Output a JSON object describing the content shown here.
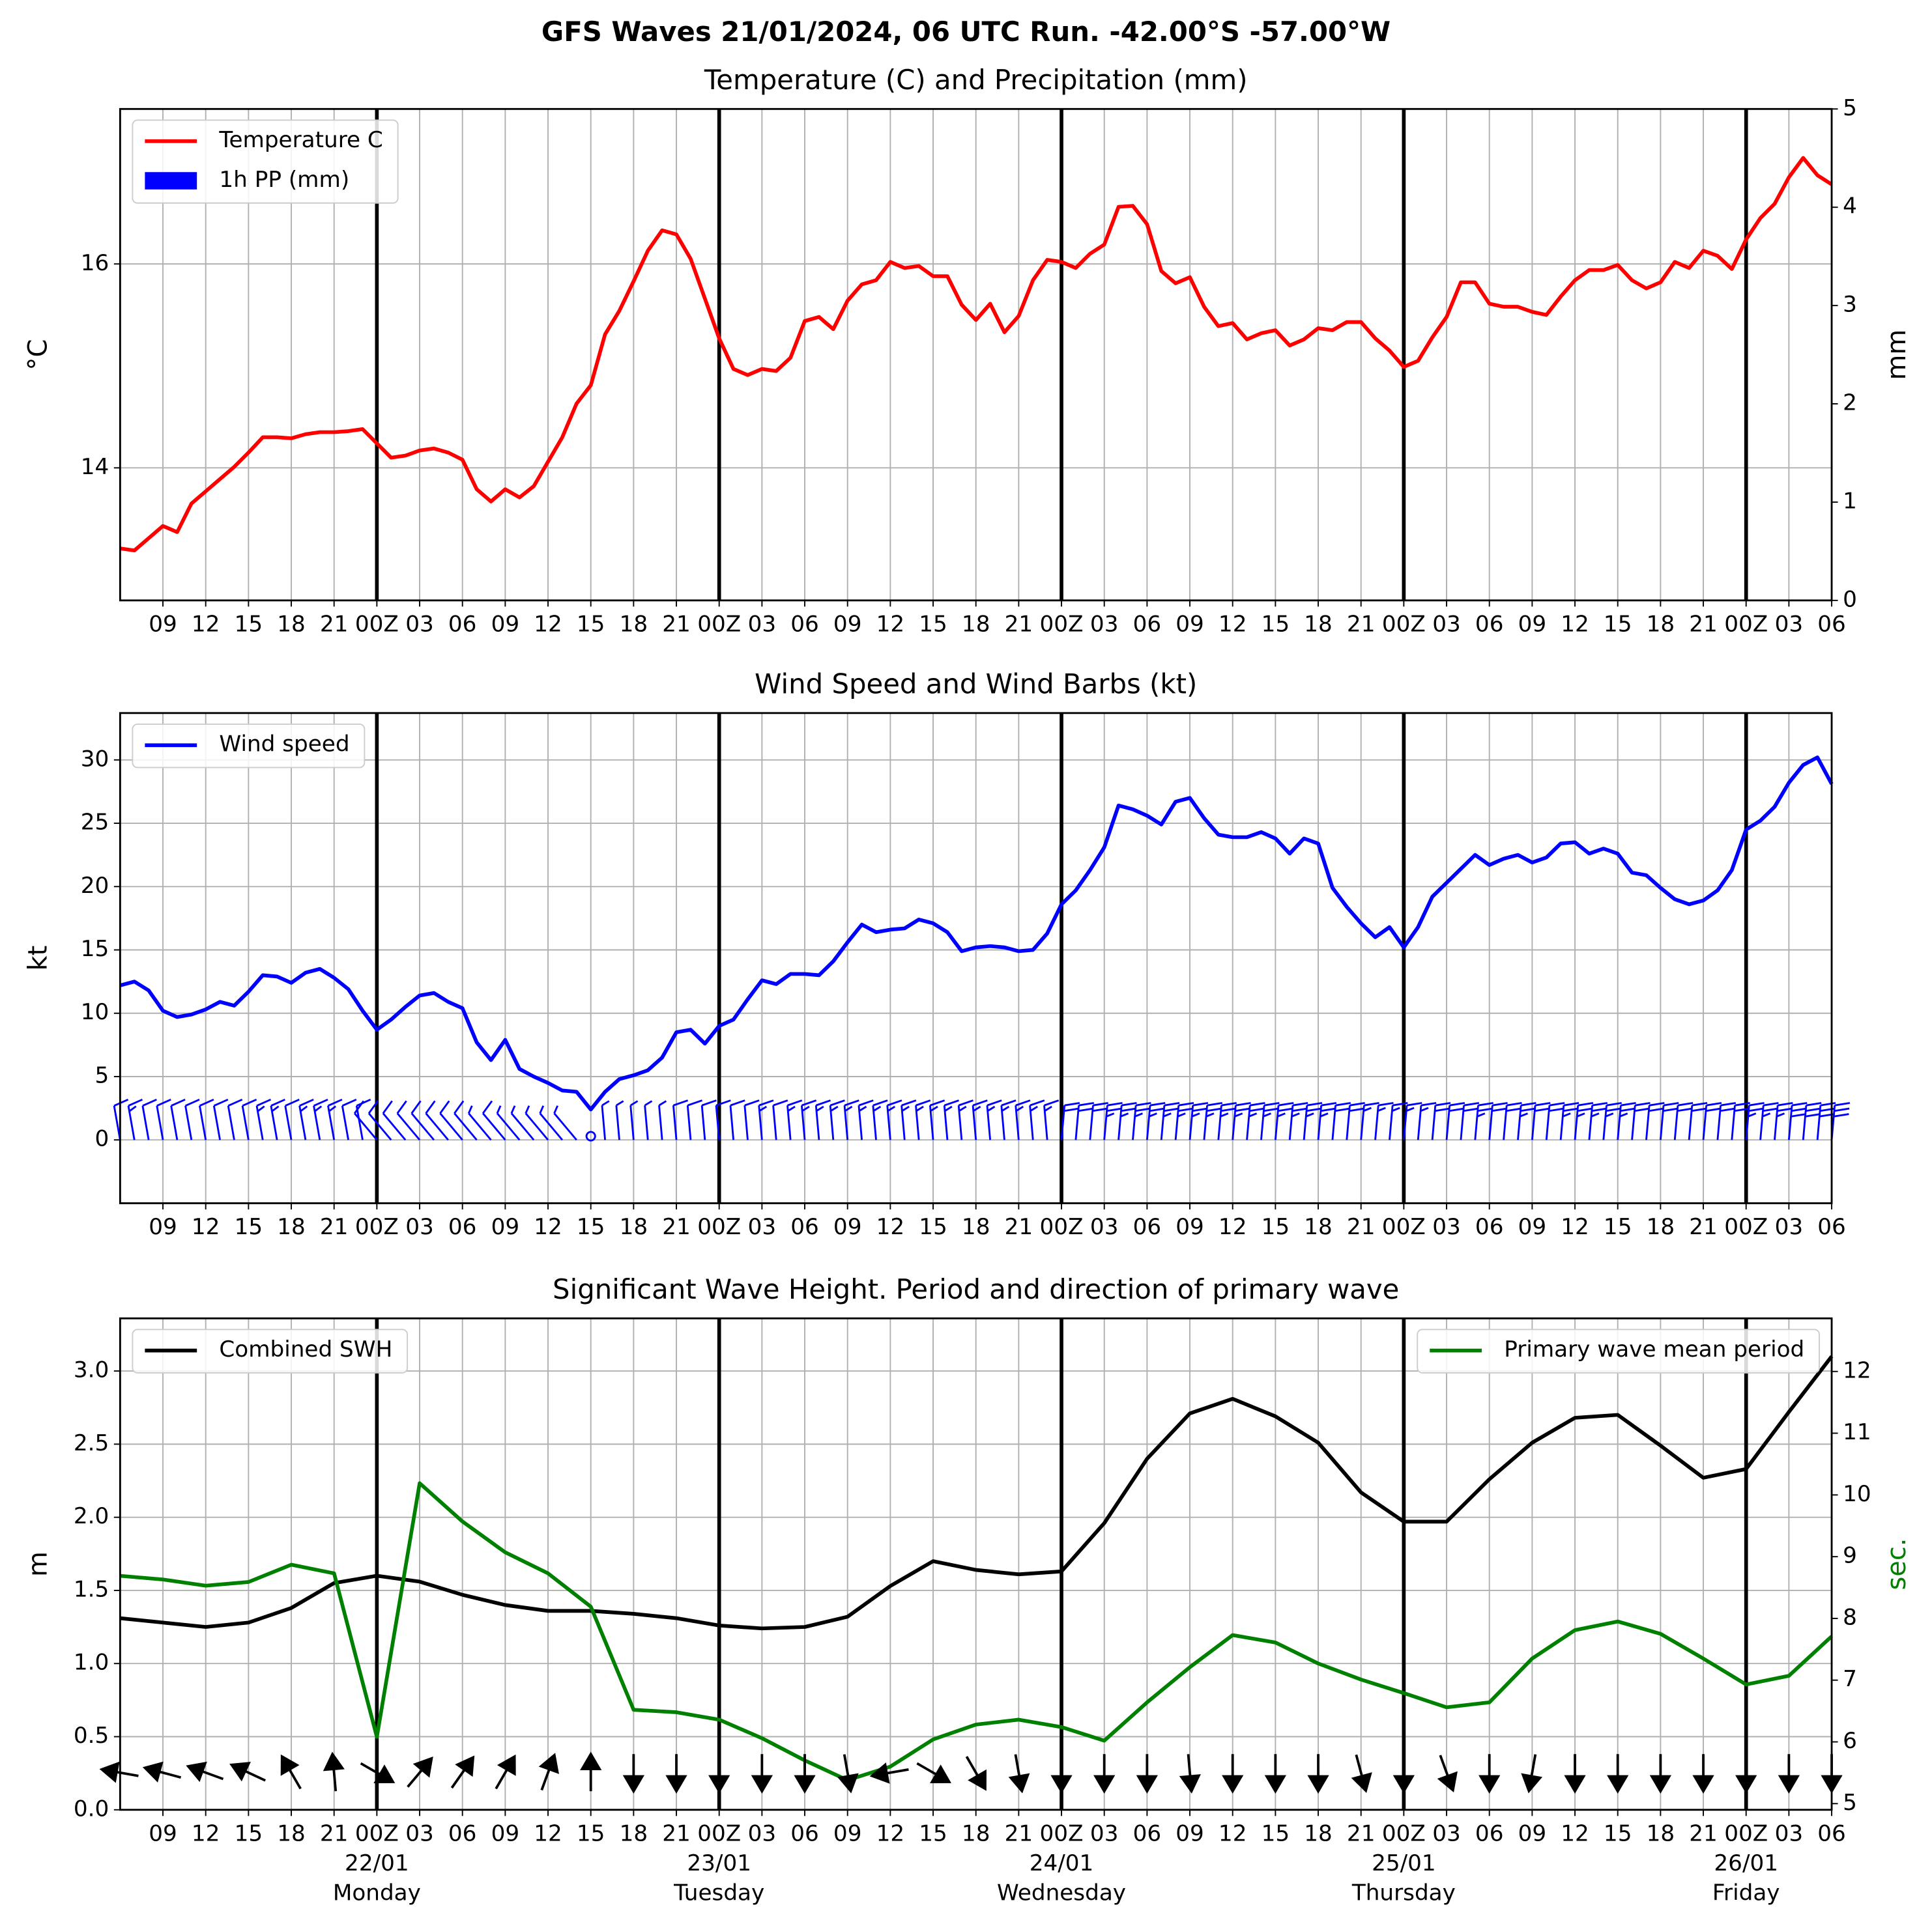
{
  "title": "GFS Waves 21/01/2024, 06 UTC Run. -42.00°S -57.00°W",
  "chart_data": [
    {
      "type": "line",
      "title": "Temperature (C) and Precipitation (mm)",
      "ylabel": "°C",
      "y2label": "mm",
      "categories": [
        null,
        null,
        null,
        "09",
        null,
        null,
        "12",
        null,
        null,
        "15",
        null,
        null,
        "18",
        null,
        null,
        "21",
        null,
        null,
        "00Z",
        null,
        null,
        "03",
        null,
        null,
        "06",
        null,
        null,
        "09",
        null,
        null,
        "12",
        null,
        null,
        "15",
        null,
        null,
        "18",
        null,
        null,
        "21",
        null,
        null,
        "00Z",
        null,
        null,
        "03",
        null,
        null,
        "06",
        null,
        null,
        "09",
        null,
        null,
        "12",
        null,
        null,
        "15",
        null,
        null,
        "18",
        null,
        null,
        "21",
        null,
        null,
        "00Z",
        null,
        null,
        "03",
        null,
        null,
        "06",
        null,
        null,
        "09",
        null,
        null,
        "12",
        null,
        null,
        "15",
        null,
        null,
        "18",
        null,
        null,
        "21",
        null,
        null,
        "00Z",
        null,
        null,
        "03",
        null,
        null,
        "06",
        null,
        null,
        "09",
        null,
        null,
        "12",
        null,
        null,
        "15",
        null,
        null,
        "18",
        null,
        null,
        "21",
        null,
        null,
        "00Z",
        null,
        null,
        "03",
        null,
        null,
        "06"
      ],
      "series": [
        {
          "name": "Temperature C",
          "color": "#ff0000",
          "values": [
            13.21,
            13.19,
            13.31,
            13.43,
            13.37,
            13.65,
            13.77,
            13.89,
            14.01,
            14.15,
            14.3,
            14.3,
            14.29,
            14.33,
            14.35,
            14.35,
            14.36,
            14.38,
            14.24,
            14.1,
            14.12,
            14.17,
            14.19,
            14.15,
            14.08,
            13.79,
            13.67,
            13.79,
            13.71,
            13.82,
            14.06,
            14.3,
            14.63,
            14.81,
            15.31,
            15.54,
            15.83,
            16.13,
            16.33,
            16.29,
            16.05,
            15.66,
            15.27,
            14.97,
            14.91,
            14.97,
            14.95,
            15.08,
            15.44,
            15.48,
            15.36,
            15.64,
            15.8,
            15.84,
            16.02,
            15.96,
            15.98,
            15.88,
            15.88,
            15.6,
            15.45,
            15.61,
            15.33,
            15.49,
            15.84,
            16.04,
            16.02,
            15.96,
            16.1,
            16.19,
            16.56,
            16.57,
            16.39,
            15.93,
            15.81,
            15.87,
            15.58,
            15.39,
            15.42,
            15.26,
            15.32,
            15.35,
            15.2,
            15.26,
            15.37,
            15.35,
            15.43,
            15.43,
            15.27,
            15.15,
            14.99,
            15.05,
            15.28,
            15.48,
            15.82,
            15.82,
            15.61,
            15.58,
            15.58,
            15.53,
            15.5,
            15.68,
            15.84,
            15.94,
            15.94,
            15.99,
            15.84,
            15.76,
            15.82,
            16.02,
            15.96,
            16.13,
            16.08,
            15.95,
            16.24,
            16.45,
            16.59,
            16.85,
            17.04,
            16.87,
            16.78
          ]
        },
        {
          "name": "1h PP (mm)",
          "color": "#0000ff",
          "type": "bar",
          "axis": "y2",
          "values": [
            0,
            0,
            0,
            0,
            0,
            0,
            0,
            0,
            0,
            0,
            0,
            0,
            0,
            0,
            0,
            0,
            0,
            0,
            0,
            0,
            0,
            0,
            0,
            0,
            0,
            0,
            0,
            0,
            0,
            0,
            0,
            0,
            0,
            0,
            0,
            0,
            0,
            0,
            0,
            0,
            0,
            0,
            0,
            0,
            0,
            0,
            0,
            0,
            0,
            0,
            0,
            0,
            0,
            0,
            0,
            0,
            0,
            0,
            0,
            0,
            0,
            0,
            0,
            0,
            0,
            0,
            0,
            0,
            0,
            0,
            0,
            0,
            0,
            0,
            0,
            0,
            0,
            0,
            0,
            0,
            0,
            0,
            0,
            0,
            0,
            0,
            0,
            0,
            0,
            0,
            0,
            0,
            0,
            0,
            0,
            0,
            0,
            0,
            0,
            0,
            0,
            0,
            0,
            0,
            0,
            0,
            0,
            0,
            0,
            0,
            0,
            0,
            0,
            0,
            0,
            0,
            0,
            0,
            0,
            0,
            0
          ]
        }
      ],
      "ylim": [
        12.7,
        17.52
      ],
      "yticks": [
        14,
        16
      ],
      "y2lim": [
        0,
        5
      ],
      "y2ticks": [
        0,
        1,
        2,
        3,
        4,
        5
      ],
      "grid": true,
      "legend": "upper left"
    },
    {
      "type": "line",
      "title": "Wind Speed and Wind Barbs (kt)",
      "ylabel": "kt",
      "categories": [
        null,
        null,
        null,
        "09",
        null,
        null,
        "12",
        null,
        null,
        "15",
        null,
        null,
        "18",
        null,
        null,
        "21",
        null,
        null,
        "00Z",
        null,
        null,
        "03",
        null,
        null,
        "06",
        null,
        null,
        "09",
        null,
        null,
        "12",
        null,
        null,
        "15",
        null,
        null,
        "18",
        null,
        null,
        "21",
        null,
        null,
        "00Z",
        null,
        null,
        "03",
        null,
        null,
        "06",
        null,
        null,
        "09",
        null,
        null,
        "12",
        null,
        null,
        "15",
        null,
        null,
        "18",
        null,
        null,
        "21",
        null,
        null,
        "00Z",
        null,
        null,
        "03",
        null,
        null,
        "06",
        null,
        null,
        "09",
        null,
        null,
        "12",
        null,
        null,
        "15",
        null,
        null,
        "18",
        null,
        null,
        "21",
        null,
        null,
        "00Z",
        null,
        null,
        "03",
        null,
        null,
        "06",
        null,
        null,
        "09",
        null,
        null,
        "12",
        null,
        null,
        "15",
        null,
        null,
        "18",
        null,
        null,
        "21",
        null,
        null,
        "00Z",
        null,
        null,
        "03",
        null,
        null,
        "06"
      ],
      "series": [
        {
          "name": "Wind speed",
          "color": "#0000ff",
          "values": [
            12.2,
            12.5,
            11.8,
            10.2,
            9.7,
            9.9,
            10.3,
            10.9,
            10.6,
            11.7,
            13.0,
            12.9,
            12.4,
            13.2,
            13.5,
            12.8,
            11.9,
            10.2,
            8.7,
            9.5,
            10.5,
            11.4,
            11.6,
            10.9,
            10.4,
            7.7,
            6.3,
            7.9,
            5.6,
            5.0,
            4.5,
            3.9,
            3.8,
            2.4,
            3.8,
            4.8,
            5.1,
            5.5,
            6.5,
            8.5,
            8.7,
            7.6,
            9.0,
            9.5,
            11.1,
            12.6,
            12.3,
            13.1,
            13.1,
            13.0,
            14.1,
            15.6,
            17.0,
            16.4,
            16.6,
            16.7,
            17.4,
            17.1,
            16.4,
            14.9,
            15.2,
            15.3,
            15.2,
            14.9,
            15.0,
            16.3,
            18.6,
            19.7,
            21.3,
            23.1,
            26.4,
            26.1,
            25.6,
            24.9,
            26.7,
            27.0,
            25.4,
            24.1,
            23.9,
            23.9,
            24.3,
            23.8,
            22.6,
            23.8,
            23.4,
            19.9,
            18.4,
            17.1,
            16.0,
            16.8,
            15.2,
            16.8,
            19.2,
            20.3,
            21.4,
            22.5,
            21.7,
            22.2,
            22.5,
            21.9,
            22.3,
            23.4,
            23.5,
            22.6,
            23.0,
            22.6,
            21.1,
            20.9,
            19.9,
            19.0,
            18.6,
            18.9,
            19.7,
            21.3,
            24.5,
            25.2,
            26.3,
            28.2,
            29.6,
            30.2,
            28.1
          ]
        }
      ],
      "wind_direction": [
        350,
        350,
        350,
        350,
        350,
        350,
        350,
        350,
        350,
        350,
        350,
        350,
        350,
        350,
        350,
        350,
        350,
        350,
        320,
        320,
        320,
        320,
        320,
        320,
        320,
        320,
        320,
        320,
        320,
        320,
        320,
        320,
        320,
        320,
        355,
        355,
        355,
        355,
        355,
        355,
        355,
        355,
        355,
        355,
        355,
        355,
        355,
        355,
        355,
        355,
        355,
        355,
        355,
        355,
        355,
        355,
        355,
        355,
        355,
        355,
        355,
        355,
        355,
        355,
        355,
        355,
        5,
        5,
        5,
        5,
        5,
        5,
        5,
        5,
        5,
        5,
        5,
        5,
        5,
        5,
        5,
        5,
        5,
        5,
        5,
        5,
        5,
        5,
        5,
        5,
        5,
        5,
        5,
        5,
        5,
        5,
        5,
        5,
        5,
        5,
        5,
        5,
        5,
        5,
        5,
        5,
        5,
        5,
        5,
        5,
        5,
        5,
        5,
        5,
        5,
        5,
        5,
        5,
        5,
        5,
        5
      ],
      "ylim": [
        -5,
        33.7
      ],
      "yticks": [
        0,
        5,
        10,
        15,
        20,
        25,
        30
      ],
      "grid": true,
      "legend": "upper left"
    },
    {
      "type": "line",
      "title": "Significant Wave Height. Period and direction of primary wave",
      "ylabel": "m",
      "y2label": "sec.",
      "y2label_color": "#008000",
      "categories": [
        null,
        [
          "09"
        ],
        [
          "12"
        ],
        [
          "15"
        ],
        [
          "18"
        ],
        [
          "21"
        ],
        [
          "00Z",
          "22/01",
          "Monday"
        ],
        [
          "03"
        ],
        [
          "06"
        ],
        [
          "09"
        ],
        [
          "12"
        ],
        [
          "15"
        ],
        [
          "18"
        ],
        [
          "21"
        ],
        [
          "00Z",
          "23/01",
          "Tuesday"
        ],
        [
          "03"
        ],
        [
          "06"
        ],
        [
          "09"
        ],
        [
          "12"
        ],
        [
          "15"
        ],
        [
          "18"
        ],
        [
          "21"
        ],
        [
          "00Z",
          "24/01",
          "Wednesday"
        ],
        [
          "03"
        ],
        [
          "06"
        ],
        [
          "09"
        ],
        [
          "12"
        ],
        [
          "15"
        ],
        [
          "18"
        ],
        [
          "21"
        ],
        [
          "00Z",
          "25/01",
          "Thursday"
        ],
        [
          "03"
        ],
        [
          "06"
        ],
        [
          "09"
        ],
        [
          "12"
        ],
        [
          "15"
        ],
        [
          "18"
        ],
        [
          "21"
        ],
        [
          "00Z",
          "26/01",
          "Friday"
        ],
        [
          "03"
        ],
        [
          "06"
        ]
      ],
      "series": [
        {
          "name": "Combined SWH",
          "color": "#000000",
          "legend": "upper left",
          "values": [
            1.31,
            1.28,
            1.25,
            1.28,
            1.38,
            1.55,
            1.6,
            1.56,
            1.47,
            1.4,
            1.36,
            1.36,
            1.34,
            1.31,
            1.26,
            1.24,
            1.25,
            1.32,
            1.53,
            1.7,
            1.64,
            1.61,
            1.63,
            1.96,
            2.4,
            2.71,
            2.81,
            2.69,
            2.51,
            2.17,
            1.97,
            1.97,
            2.26,
            2.51,
            2.68,
            2.7,
            2.49,
            2.27,
            2.33,
            2.72,
            3.1
          ]
        },
        {
          "name": "Primary wave mean period",
          "color": "#008000",
          "axis": "y2",
          "legend": "upper right",
          "values": [
            8.69,
            8.63,
            8.53,
            8.59,
            8.87,
            8.73,
            6.08,
            10.19,
            9.57,
            9.07,
            8.73,
            8.19,
            6.52,
            6.48,
            6.36,
            6.06,
            5.7,
            5.38,
            5.6,
            6.04,
            6.28,
            6.36,
            6.24,
            6.02,
            6.64,
            7.21,
            7.73,
            7.61,
            7.27,
            7.01,
            6.79,
            6.56,
            6.64,
            7.35,
            7.81,
            7.95,
            7.75,
            7.35,
            6.93,
            7.07,
            7.71
          ]
        }
      ],
      "wave_direction": [
        100,
        105,
        110,
        115,
        150,
        175,
        300,
        220,
        215,
        210,
        200,
        180,
        0,
        0,
        0,
        0,
        0,
        350,
        80,
        300,
        330,
        350,
        0,
        0,
        0,
        355,
        0,
        0,
        0,
        345,
        0,
        340,
        0,
        10,
        0,
        0,
        0,
        0,
        0,
        0,
        0
      ],
      "ylim": [
        0,
        3.36
      ],
      "yticks": [
        {
          "value": 0,
          "label": "0.0"
        },
        0.5,
        {
          "value": 1,
          "label": "1.0"
        },
        1.5,
        {
          "value": 2,
          "label": "2.0"
        },
        2.5,
        {
          "value": 3,
          "label": "3.0"
        }
      ],
      "y2lim": [
        4.9,
        12.86
      ],
      "y2ticks": [
        5,
        6,
        7,
        8,
        9,
        10,
        11,
        12
      ],
      "grid": true
    }
  ]
}
